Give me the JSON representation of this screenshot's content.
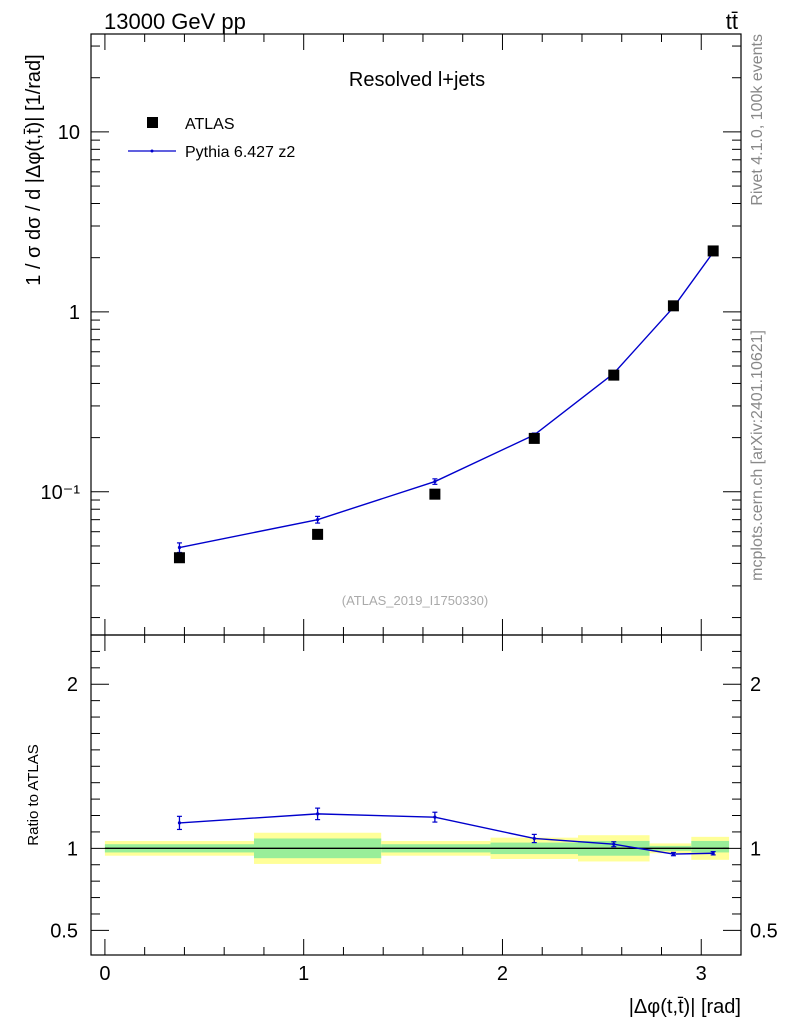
{
  "header": {
    "energy_label": "13000 GeV pp",
    "process_label": "tt̄"
  },
  "side": {
    "rivet_label": "Rivet 4.1.0,  100k events",
    "site_label": "mcplots.cern.ch [arXiv:2401.10621]"
  },
  "chart_data": [
    {
      "type": "scatter",
      "title": "Resolved l+jets",
      "ylabel": "1 / σ dσ / d |Δφ(t,t̄)| [1/rad]",
      "xlabel": "|Δφ(t,t̄)| [rad]",
      "yscale": "log",
      "xlim": [
        -0.07,
        3.2
      ],
      "ylim": [
        0.016,
        35
      ],
      "analysis_label": "(ATLAS_2019_I1750330)",
      "y_tick_labels": [
        "10",
        "1",
        "10⁻¹"
      ],
      "y_tick_values": [
        10,
        1,
        0.1
      ],
      "legend": {
        "position": "top-left",
        "entries": [
          "ATLAS",
          "Pythia 6.427 z2"
        ]
      },
      "series": [
        {
          "name": "ATLAS",
          "marker": "square",
          "color": "#000000",
          "x": [
            0.375,
            1.07,
            1.66,
            2.16,
            2.56,
            2.86,
            3.06
          ],
          "y": [
            0.043,
            0.058,
            0.097,
            0.198,
            0.445,
            1.08,
            2.18
          ]
        },
        {
          "name": "Pythia 6.427 z2",
          "marker": "line",
          "color": "#0000cc",
          "x": [
            0.375,
            1.07,
            1.66,
            2.16,
            2.56,
            2.86,
            3.06
          ],
          "y": [
            0.049,
            0.07,
            0.114,
            0.207,
            0.455,
            1.06,
            2.14
          ],
          "yerr": [
            0.003,
            0.003,
            0.004,
            0.005,
            0.008,
            0.015,
            0.02
          ]
        }
      ]
    },
    {
      "type": "scatter",
      "ylabel": "Ratio to ATLAS",
      "xlabel": "|Δφ(t,t̄)| [rad]",
      "xlim": [
        -0.07,
        3.2
      ],
      "ylim": [
        0.35,
        2.3
      ],
      "x_tick_labels": [
        "0",
        "1",
        "2",
        "3"
      ],
      "x_tick_values": [
        0,
        1,
        2,
        3
      ],
      "y_tick_labels": [
        "2",
        "1",
        "0.5"
      ],
      "y_tick_values": [
        2,
        1,
        0.5
      ],
      "bands": {
        "bins": [
          [
            0,
            0.75
          ],
          [
            0.75,
            1.39
          ],
          [
            1.39,
            1.94
          ],
          [
            1.94,
            2.38
          ],
          [
            2.38,
            2.74
          ],
          [
            2.74,
            2.95
          ],
          [
            2.95,
            3.14
          ]
        ],
        "stat_low": [
          0.975,
          0.94,
          0.975,
          0.965,
          0.955,
          0.985,
          0.975
        ],
        "stat_high": [
          1.025,
          1.06,
          1.025,
          1.035,
          1.045,
          1.015,
          1.045
        ],
        "total_low": [
          0.955,
          0.905,
          0.955,
          0.935,
          0.92,
          0.97,
          0.93
        ],
        "total_high": [
          1.045,
          1.095,
          1.045,
          1.065,
          1.08,
          1.03,
          1.07
        ]
      },
      "series": [
        {
          "name": "Pythia 6.427 z2",
          "color": "#0000cc",
          "x": [
            0.375,
            1.07,
            1.66,
            2.16,
            2.56,
            2.86,
            3.06
          ],
          "y": [
            1.155,
            1.21,
            1.19,
            1.06,
            1.025,
            0.965,
            0.97
          ],
          "yerr": [
            0.04,
            0.035,
            0.03,
            0.025,
            0.015,
            0.01,
            0.01
          ]
        }
      ]
    }
  ]
}
